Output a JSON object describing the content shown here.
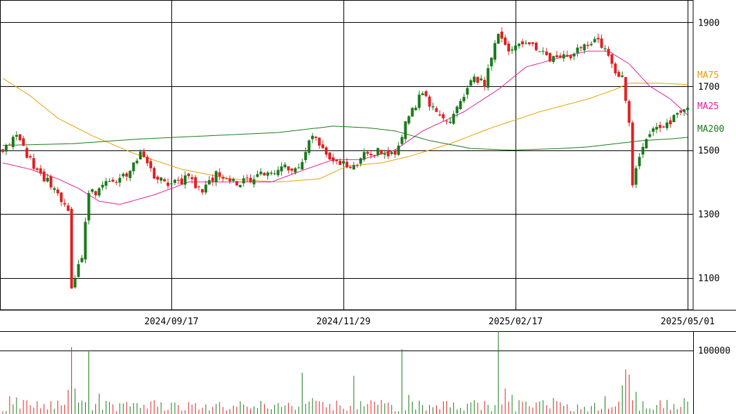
{
  "chart_data": {
    "type": "candlestick",
    "price_axis": {
      "range": [
        1000,
        1970
      ],
      "ticks": [
        "1900",
        "1700",
        "1500",
        "1300",
        "1100"
      ],
      "tick_values": [
        1900,
        1700,
        1500,
        1300,
        1100
      ]
    },
    "date_axis": {
      "labels": [
        "2024/09/17",
        "2024/11/29",
        "2025/02/17",
        "2025/05/01"
      ],
      "label_indices": [
        49,
        99,
        149,
        199
      ],
      "sessions": 200
    },
    "volume_axis": {
      "range": [
        0,
        130000
      ],
      "ticks": [
        "100000"
      ],
      "tick_values": [
        100000
      ]
    },
    "legend": [
      {
        "name": "MA75",
        "color": "#e8a000"
      },
      {
        "name": "MA25",
        "color": "#e0209a"
      },
      {
        "name": "MA200",
        "color": "#1a7a1a"
      }
    ],
    "colors": {
      "up": "#1a7a1a",
      "down": "#e02020",
      "grid": "#000000"
    },
    "price_anchors": [
      [
        0,
        1505
      ],
      [
        4,
        1540
      ],
      [
        8,
        1470
      ],
      [
        12,
        1410
      ],
      [
        16,
        1370
      ],
      [
        19,
        1310
      ],
      [
        20,
        1060
      ],
      [
        23,
        1170
      ],
      [
        25,
        1360
      ],
      [
        30,
        1390
      ],
      [
        36,
        1430
      ],
      [
        40,
        1490
      ],
      [
        44,
        1420
      ],
      [
        48,
        1400
      ],
      [
        54,
        1410
      ],
      [
        58,
        1380
      ],
      [
        62,
        1420
      ],
      [
        68,
        1395
      ],
      [
        74,
        1420
      ],
      [
        80,
        1440
      ],
      [
        86,
        1450
      ],
      [
        90,
        1540
      ],
      [
        96,
        1460
      ],
      [
        102,
        1450
      ],
      [
        106,
        1500
      ],
      [
        110,
        1490
      ],
      [
        114,
        1495
      ],
      [
        118,
        1610
      ],
      [
        122,
        1680
      ],
      [
        126,
        1620
      ],
      [
        130,
        1590
      ],
      [
        136,
        1720
      ],
      [
        140,
        1710
      ],
      [
        144,
        1860
      ],
      [
        146,
        1820
      ],
      [
        150,
        1820
      ],
      [
        154,
        1830
      ],
      [
        158,
        1790
      ],
      [
        164,
        1790
      ],
      [
        168,
        1820
      ],
      [
        172,
        1850
      ],
      [
        175,
        1820
      ],
      [
        178,
        1750
      ],
      [
        180,
        1720
      ],
      [
        182,
        1580
      ],
      [
        183,
        1390
      ],
      [
        185,
        1490
      ],
      [
        188,
        1560
      ],
      [
        192,
        1580
      ],
      [
        196,
        1610
      ],
      [
        199,
        1640
      ]
    ],
    "ma_anchors": {
      "MA75": [
        [
          0,
          1725
        ],
        [
          8,
          1670
        ],
        [
          16,
          1600
        ],
        [
          26,
          1545
        ],
        [
          38,
          1490
        ],
        [
          52,
          1440
        ],
        [
          66,
          1410
        ],
        [
          80,
          1400
        ],
        [
          92,
          1410
        ],
        [
          100,
          1450
        ],
        [
          110,
          1460
        ],
        [
          118,
          1480
        ],
        [
          130,
          1520
        ],
        [
          142,
          1570
        ],
        [
          156,
          1620
        ],
        [
          170,
          1660
        ],
        [
          178,
          1690
        ],
        [
          182,
          1710
        ],
        [
          190,
          1710
        ],
        [
          199,
          1705
        ]
      ],
      "MA25": [
        [
          0,
          1460
        ],
        [
          8,
          1440
        ],
        [
          16,
          1410
        ],
        [
          22,
          1380
        ],
        [
          28,
          1340
        ],
        [
          34,
          1330
        ],
        [
          44,
          1360
        ],
        [
          54,
          1400
        ],
        [
          66,
          1400
        ],
        [
          78,
          1400
        ],
        [
          88,
          1440
        ],
        [
          96,
          1470
        ],
        [
          104,
          1470
        ],
        [
          114,
          1500
        ],
        [
          122,
          1560
        ],
        [
          134,
          1620
        ],
        [
          144,
          1690
        ],
        [
          152,
          1760
        ],
        [
          162,
          1790
        ],
        [
          170,
          1810
        ],
        [
          176,
          1810
        ],
        [
          182,
          1770
        ],
        [
          188,
          1700
        ],
        [
          194,
          1660
        ],
        [
          199,
          1610
        ]
      ],
      "MA200": [
        [
          0,
          1515
        ],
        [
          20,
          1520
        ],
        [
          40,
          1535
        ],
        [
          60,
          1545
        ],
        [
          80,
          1555
        ],
        [
          96,
          1575
        ],
        [
          106,
          1570
        ],
        [
          114,
          1560
        ],
        [
          124,
          1530
        ],
        [
          136,
          1505
        ],
        [
          148,
          1500
        ],
        [
          162,
          1505
        ],
        [
          170,
          1510
        ],
        [
          178,
          1520
        ],
        [
          186,
          1530
        ],
        [
          194,
          1535
        ],
        [
          199,
          1540
        ]
      ]
    },
    "volume_spikes": [
      [
        2,
        28000
      ],
      [
        4,
        26000
      ],
      [
        6,
        22000
      ],
      [
        10,
        20000
      ],
      [
        19,
        38000
      ],
      [
        20,
        105000
      ],
      [
        21,
        40000
      ],
      [
        25,
        98000
      ],
      [
        28,
        32000
      ],
      [
        50,
        18000
      ],
      [
        70,
        15000
      ],
      [
        87,
        65000
      ],
      [
        90,
        25000
      ],
      [
        92,
        20000
      ],
      [
        102,
        60000
      ],
      [
        110,
        22000
      ],
      [
        116,
        102000
      ],
      [
        118,
        30000
      ],
      [
        144,
        132000
      ],
      [
        146,
        40000
      ],
      [
        148,
        30000
      ],
      [
        160,
        25000
      ],
      [
        175,
        28000
      ],
      [
        180,
        45000
      ],
      [
        181,
        70000
      ],
      [
        182,
        62000
      ],
      [
        184,
        35000
      ],
      [
        186,
        20000
      ],
      [
        193,
        22000
      ],
      [
        198,
        25000
      ]
    ]
  }
}
